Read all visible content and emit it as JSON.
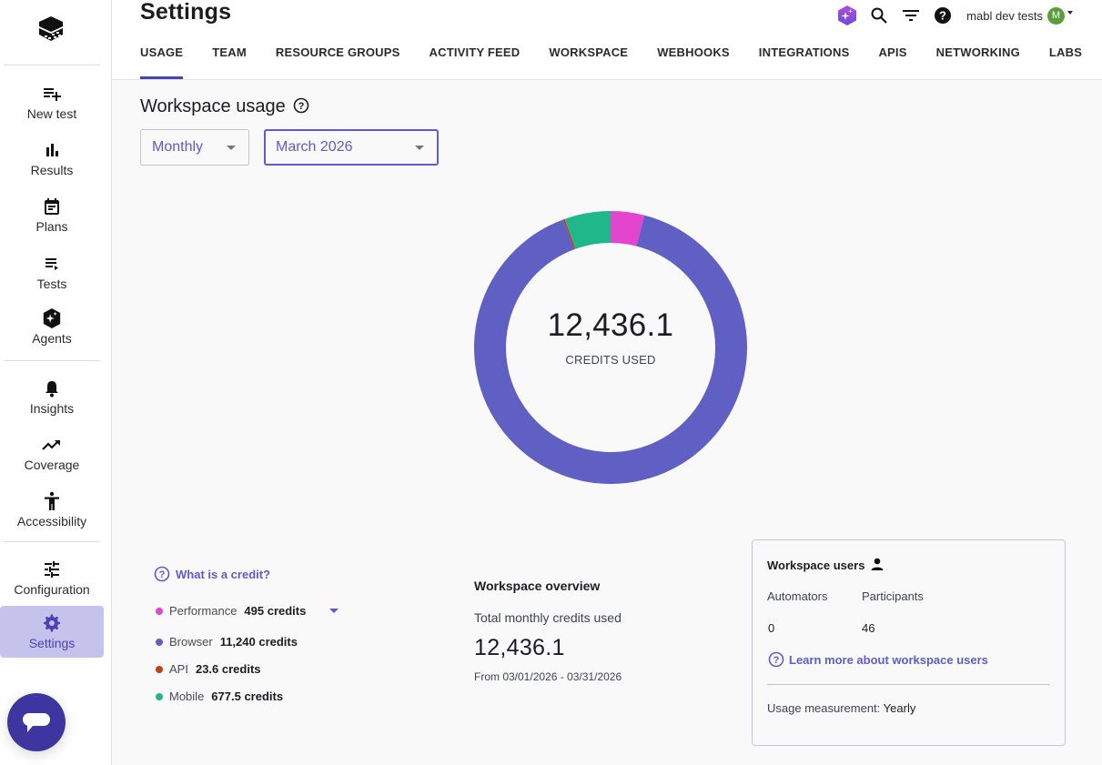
{
  "sidebar": {
    "logo": "mabl-cube-logo",
    "items": [
      {
        "label": "New test",
        "icon": "playlist-add-icon"
      },
      {
        "label": "Results",
        "icon": "bar-chart-icon"
      },
      {
        "label": "Plans",
        "icon": "calendar-icon"
      },
      {
        "label": "Tests",
        "icon": "playlist-play-icon"
      },
      {
        "label": "Agents",
        "icon": "agent-sparkle-icon"
      },
      {
        "label": "Insights",
        "icon": "bell-icon"
      },
      {
        "label": "Coverage",
        "icon": "trending-up-icon"
      },
      {
        "label": "Accessibility",
        "icon": "accessibility-icon"
      },
      {
        "label": "Configuration",
        "icon": "tune-icon"
      },
      {
        "label": "Settings",
        "icon": "gear-icon",
        "active": true
      }
    ],
    "chat_button": "chat-icon"
  },
  "header": {
    "title": "Settings",
    "tabs": [
      {
        "label": "USAGE",
        "active": true
      },
      {
        "label": "TEAM"
      },
      {
        "label": "RESOURCE GROUPS"
      },
      {
        "label": "ACTIVITY FEED"
      },
      {
        "label": "WORKSPACE"
      },
      {
        "label": "WEBHOOKS"
      },
      {
        "label": "INTEGRATIONS"
      },
      {
        "label": "APIS"
      },
      {
        "label": "NETWORKING"
      },
      {
        "label": "LABS"
      }
    ],
    "workspace_name": "mabl dev tests",
    "avatar_initial": "M",
    "avatar_color": "#5a9e3a"
  },
  "usage": {
    "title": "Workspace usage",
    "period_select": {
      "value": "Monthly"
    },
    "month_select": {
      "value": "March 2026"
    },
    "donut": {
      "total": "12,436.1",
      "caption": "CREDITS USED"
    },
    "what_is_credit": "What is a credit?",
    "legend": [
      {
        "name": "Performance",
        "value": "495 credits",
        "color": "#e445cf",
        "expandable": true
      },
      {
        "name": "Browser",
        "value": "11,240 credits",
        "color": "#5f5fc4"
      },
      {
        "name": "API",
        "value": "23.6 credits",
        "color": "#c83c14"
      },
      {
        "name": "Mobile",
        "value": "677.5 credits",
        "color": "#20b88a"
      }
    ]
  },
  "overview": {
    "title": "Workspace overview",
    "subtitle": "Total monthly credits used",
    "total": "12,436.1",
    "range": "From 03/01/2026 - 03/31/2026"
  },
  "users_card": {
    "title": "Workspace users",
    "automators_label": "Automators",
    "participants_label": "Participants",
    "automators_value": "0",
    "participants_value": "46",
    "learn_more": "Learn more about workspace users",
    "measurement_label": "Usage measurement:",
    "measurement_value": "Yearly"
  },
  "chart_data": {
    "type": "pie",
    "variant": "donut",
    "title": "CREDITS USED",
    "center_label": "12,436.1",
    "categories": [
      "Performance",
      "Browser",
      "API",
      "Mobile"
    ],
    "values": [
      495,
      11240,
      23.6,
      677.5
    ],
    "colors": [
      "#e445cf",
      "#5f5fc4",
      "#c83c14",
      "#20b88a"
    ],
    "start_angle_deg": 0,
    "direction": "clockwise",
    "total": 12436.1
  }
}
